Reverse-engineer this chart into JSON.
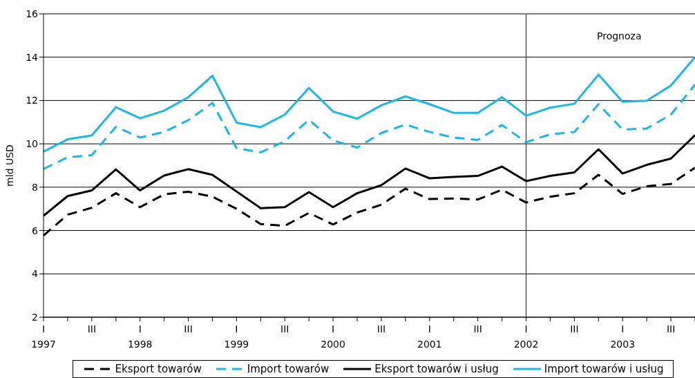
{
  "chart_data": {
    "type": "line",
    "ylabel": "mld USD",
    "categories": [
      "I\n1997",
      null,
      "III",
      null,
      "I\n1998",
      null,
      "III",
      null,
      "I\n1999",
      null,
      "III",
      null,
      "I\n2000",
      null,
      "III",
      null,
      "I\n2001",
      null,
      "III",
      null,
      "I\n2002",
      null,
      "III",
      null,
      "I\n2003",
      null,
      "III",
      null
    ],
    "series": [
      {
        "name": "Eksport towarów",
        "color": "#000000",
        "line_style": "dashed",
        "values": [
          5.77,
          6.73,
          7.05,
          7.72,
          7.08,
          7.67,
          7.79,
          7.56,
          7.0,
          6.3,
          6.22,
          6.81,
          6.28,
          6.83,
          7.19,
          7.93,
          7.45,
          7.48,
          7.43,
          7.88,
          7.29,
          7.56,
          7.72,
          8.57,
          7.69,
          8.04,
          8.15,
          8.9
        ]
      },
      {
        "name": "Import towarów",
        "color": "#1ab8e8",
        "line_style": "dashed",
        "values": [
          8.84,
          9.38,
          9.48,
          10.79,
          10.29,
          10.55,
          11.09,
          11.89,
          9.8,
          9.61,
          10.12,
          11.11,
          10.15,
          9.83,
          10.5,
          10.89,
          10.55,
          10.29,
          10.18,
          10.87,
          10.07,
          10.44,
          10.55,
          11.83,
          10.66,
          10.71,
          11.35,
          12.73
        ]
      },
      {
        "name": "Eksport towarów i usług",
        "color": "#000000",
        "line_style": "solid",
        "values": [
          6.68,
          7.59,
          7.85,
          8.82,
          7.85,
          8.54,
          8.83,
          8.57,
          7.8,
          7.03,
          7.08,
          7.77,
          7.08,
          7.72,
          8.09,
          8.86,
          8.41,
          8.47,
          8.52,
          8.95,
          8.28,
          8.52,
          8.68,
          9.75,
          8.63,
          9.03,
          9.32,
          10.4
        ]
      },
      {
        "name": "Import towarów i usług",
        "color": "#1ab8e8",
        "line_style": "solid",
        "values": [
          9.64,
          10.21,
          10.39,
          11.69,
          11.18,
          11.53,
          12.15,
          13.14,
          10.98,
          10.77,
          11.35,
          12.58,
          11.49,
          11.16,
          11.78,
          12.19,
          11.83,
          11.43,
          11.43,
          12.15,
          11.3,
          11.67,
          11.85,
          13.19,
          11.94,
          11.99,
          12.69,
          14.0
        ]
      }
    ],
    "ylim": [
      2,
      16
    ],
    "yticks": [
      2,
      4,
      6,
      8,
      10,
      12,
      14,
      16
    ],
    "grid": "y",
    "legend": "bottom",
    "marker": "none",
    "annotations": [
      "Prognoza"
    ],
    "ref_lines": [
      {
        "axis": "x",
        "value": "I\n2002",
        "color": "#555555"
      }
    ]
  }
}
